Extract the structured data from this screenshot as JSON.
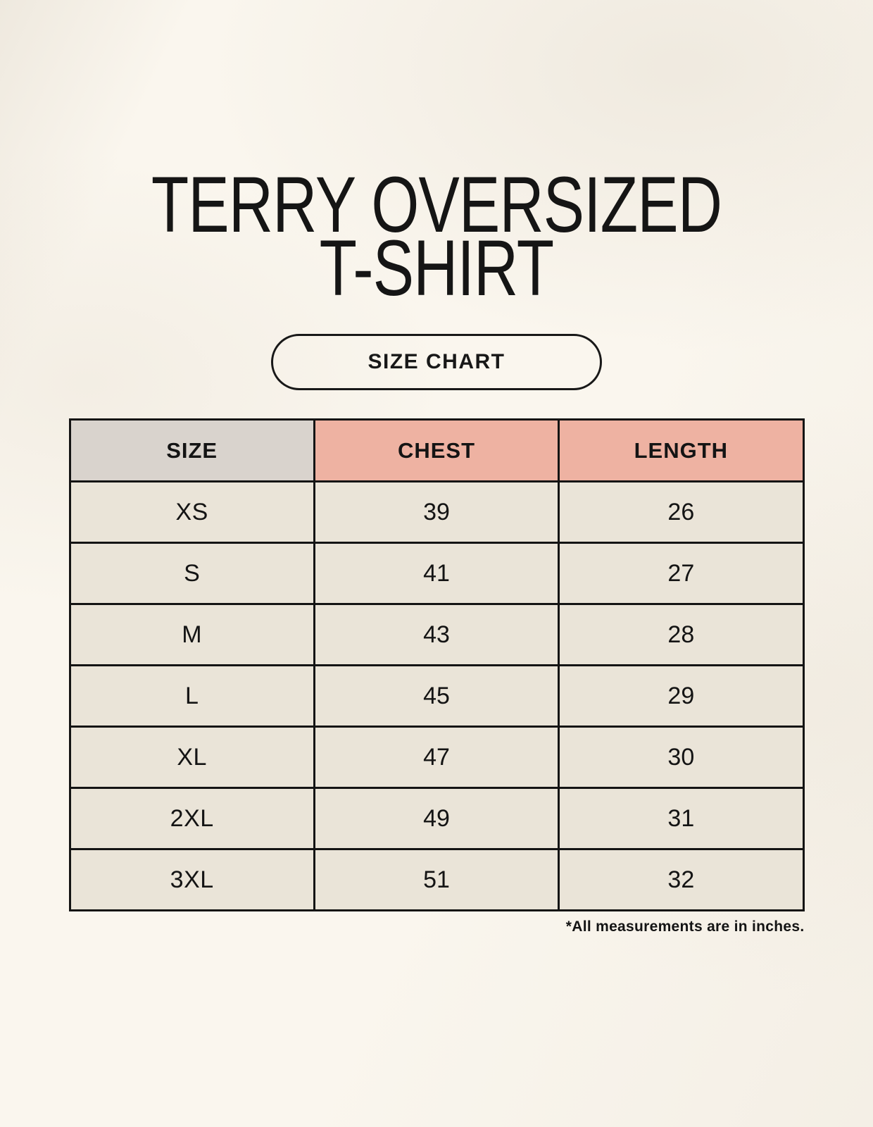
{
  "title": {
    "line1": "TERRY OVERSIZED",
    "line2": "T-SHIRT"
  },
  "size_chart_button": {
    "label": "SIZE CHART"
  },
  "table": {
    "columns": [
      "SIZE",
      "CHEST",
      "LENGTH"
    ],
    "rows": [
      {
        "size": "XS",
        "chest": "39",
        "length": "26"
      },
      {
        "size": "S",
        "chest": "41",
        "length": "27"
      },
      {
        "size": "M",
        "chest": "43",
        "length": "28"
      },
      {
        "size": "L",
        "chest": "45",
        "length": "29"
      },
      {
        "size": "XL",
        "chest": "47",
        "length": "30"
      },
      {
        "size": "2XL",
        "chest": "49",
        "length": "31"
      },
      {
        "size": "3XL",
        "chest": "51",
        "length": "32"
      }
    ]
  },
  "footnote": "*All measurements are in inches.",
  "colors": {
    "page_background": "#faf6ee",
    "size_column_gray": "#d9d3cd",
    "header_pink": "#eeb2a2",
    "cell_cream": "#eae4d8",
    "border_black": "#141414"
  },
  "chart_data": {
    "type": "table",
    "title": "TERRY OVERSIZED T-SHIRT — SIZE CHART",
    "columns": [
      "SIZE",
      "CHEST",
      "LENGTH"
    ],
    "rows": [
      [
        "XS",
        39,
        26
      ],
      [
        "S",
        41,
        27
      ],
      [
        "M",
        43,
        28
      ],
      [
        "L",
        45,
        29
      ],
      [
        "XL",
        47,
        30
      ],
      [
        "2XL",
        49,
        31
      ],
      [
        "3XL",
        51,
        32
      ]
    ],
    "units": "inches"
  }
}
